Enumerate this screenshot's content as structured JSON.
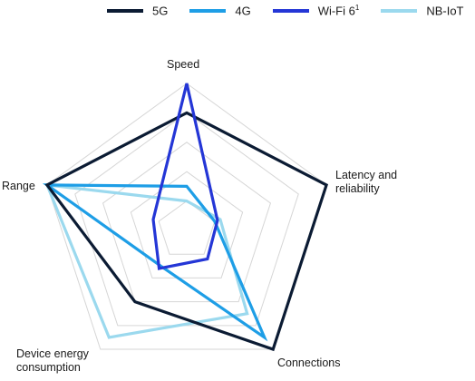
{
  "chart_data": {
    "type": "radar",
    "title": "",
    "axes": [
      "Speed",
      "Latency and\nreliability",
      "Connections",
      "Device energy\nconsumption",
      "Range"
    ],
    "scale": {
      "min": 0,
      "max": 5,
      "rings": 5
    },
    "legend_position": "top",
    "series": [
      {
        "name": "5G",
        "sup": "",
        "color": "#0b1b33",
        "values": [
          4,
          5,
          5,
          3,
          5
        ]
      },
      {
        "name": "4G",
        "sup": "",
        "color": "#1e9ee6",
        "values": [
          1.5,
          1,
          4.5,
          1.5,
          5
        ]
      },
      {
        "name": "Wi-Fi 6",
        "sup": "1",
        "color": "#2436d6",
        "values": [
          5,
          1.1,
          1.2,
          1.6,
          1.2
        ]
      },
      {
        "name": "NB-IoT",
        "sup": "",
        "color": "#9bd9ee",
        "values": [
          1,
          1.2,
          3.5,
          4.5,
          5
        ]
      }
    ]
  }
}
